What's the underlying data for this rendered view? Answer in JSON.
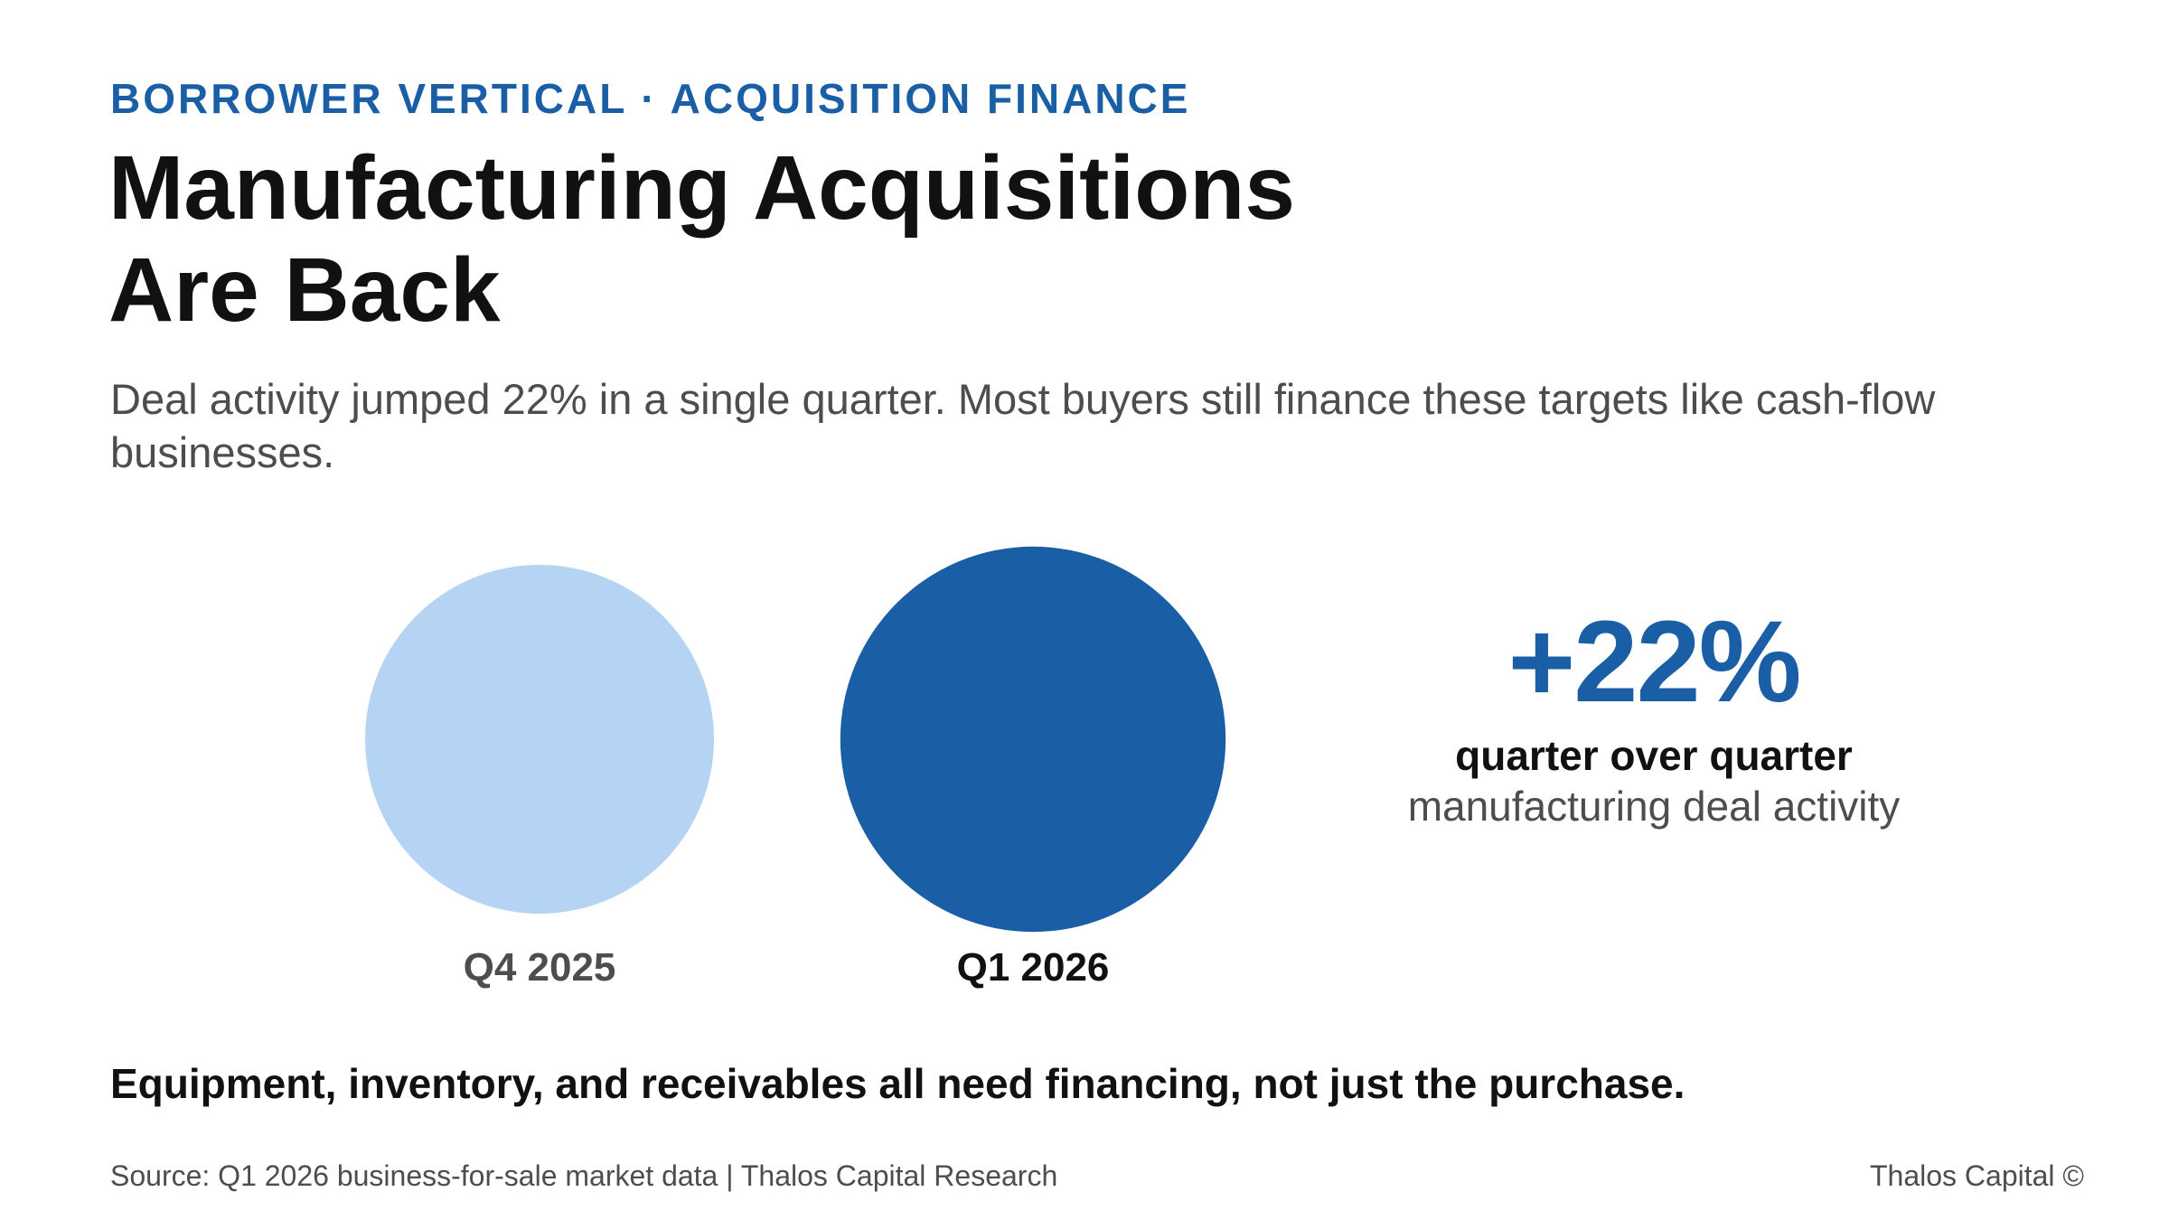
{
  "header": {
    "eyebrow": "BORROWER VERTICAL · ACQUISITION FINANCE",
    "title": "Manufacturing Acquisitions Are Back",
    "subtitle": "Deal activity jumped 22% in a single quarter. Most buyers still finance these targets like cash-flow businesses."
  },
  "chart_data": {
    "type": "bubble",
    "title": "",
    "xlabel": "",
    "ylabel": "",
    "categories": [
      "Q4 2025",
      "Q1 2026"
    ],
    "values": [
      100,
      122
    ],
    "legend": "none",
    "grid": false,
    "colors": [
      "#b5d3f3",
      "#1a5fa6"
    ],
    "label_colors": [
      "#4d4d4d",
      "#111111"
    ]
  },
  "stat": {
    "value": "+22%",
    "line1": "quarter over quarter",
    "line2": "manufacturing deal activity"
  },
  "takeaway": "Equipment, inventory, and receivables all need financing, not just the purchase.",
  "footer": {
    "source": "Source: Q1 2026 business-for-sale market data | Thalos Capital Research",
    "brand": "Thalos Capital ©"
  },
  "colors": {
    "accent": "#1a5fa6",
    "light": "#b5d3f3",
    "text": "#111111",
    "muted": "#4d4d4d"
  }
}
